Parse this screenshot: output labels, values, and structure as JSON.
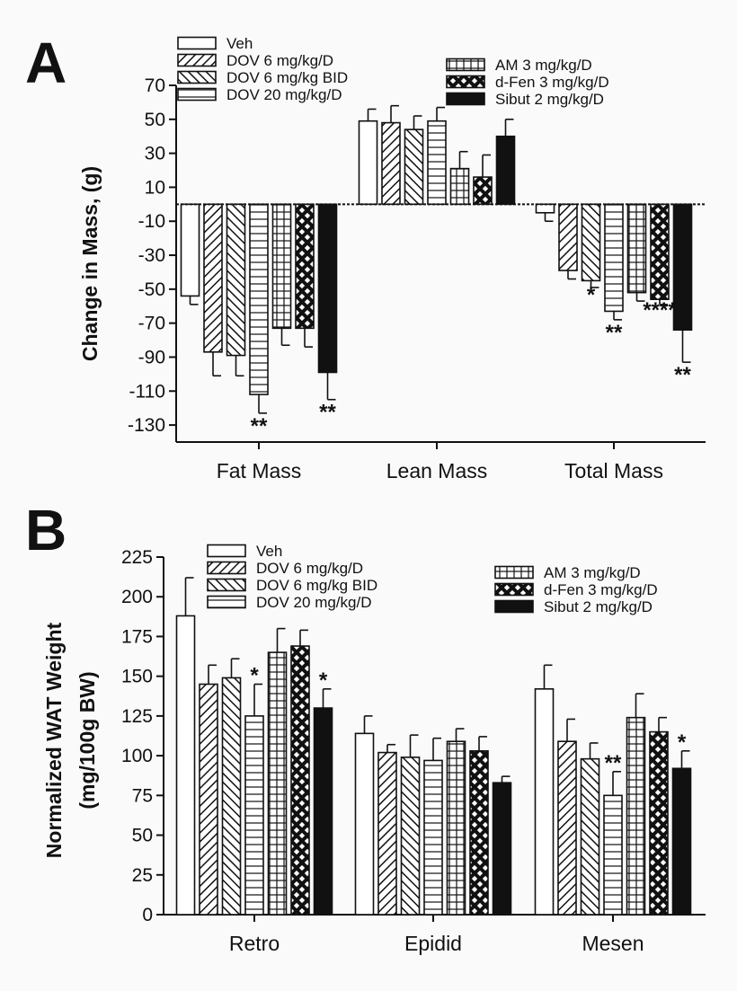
{
  "chart_data": [
    {
      "type": "bar",
      "panel_label": "A",
      "ylabel": "Change in Mass, (g)",
      "ylim": [
        -140,
        70
      ],
      "yticks": [
        "70",
        "50",
        "30",
        "10",
        "-10",
        "-30",
        "-50",
        "-70",
        "-90",
        "-110",
        "-130"
      ],
      "categories": [
        "Fat Mass",
        "Lean Mass",
        "Total Mass"
      ],
      "series": [
        {
          "name": "Veh",
          "pattern": "open",
          "values": [
            -54,
            49,
            -5
          ],
          "errors": [
            5,
            7,
            5
          ]
        },
        {
          "name": "DOV 6 mg/kg/D",
          "pattern": "diag-right",
          "values": [
            -87,
            48,
            -39
          ],
          "errors": [
            14,
            10,
            5
          ]
        },
        {
          "name": "DOV 6 mg/kg BID",
          "pattern": "diag-left",
          "values": [
            -89,
            44,
            -45
          ],
          "errors": [
            12,
            8,
            4
          ]
        },
        {
          "name": "DOV 20 mg/kg/D",
          "pattern": "hlines",
          "values": [
            -112,
            49,
            -63
          ],
          "errors": [
            11,
            8,
            5
          ]
        },
        {
          "name": "AM 3 mg/kg/D",
          "pattern": "grid",
          "values": [
            -73,
            21,
            -52
          ],
          "errors": [
            10,
            10,
            5
          ]
        },
        {
          "name": "d-Fen 3 mg/kg/D",
          "pattern": "cross",
          "values": [
            -73,
            16,
            -56
          ],
          "errors": [
            11,
            13,
            3
          ]
        },
        {
          "name": "Sibut 2 mg/kg/D",
          "pattern": "solid",
          "values": [
            -99,
            40,
            -74
          ],
          "errors": [
            16,
            10,
            19
          ]
        }
      ],
      "annotations": [
        {
          "text": "**",
          "category": 0,
          "series": 3
        },
        {
          "text": "**",
          "category": 0,
          "series": 6
        },
        {
          "text": "*",
          "category": 2,
          "series": 2
        },
        {
          "text": "**",
          "category": 2,
          "series": 3
        },
        {
          "text": "****",
          "category": 2,
          "series": 5
        },
        {
          "text": "**",
          "category": 2,
          "series": 6
        }
      ],
      "grid": false,
      "legend_position": "top"
    },
    {
      "type": "bar",
      "panel_label": "B",
      "ylabel_line1": "Normalized WAT Weight",
      "ylabel_line2": "(mg/100g BW)",
      "ylim": [
        0,
        225
      ],
      "yticks": [
        "225",
        "200",
        "175",
        "150",
        "125",
        "100",
        "75",
        "50",
        "25",
        "0"
      ],
      "categories": [
        "Retro",
        "Epidid",
        "Mesen"
      ],
      "series": [
        {
          "name": "Veh",
          "pattern": "open",
          "values": [
            188,
            114,
            142
          ],
          "errors": [
            24,
            11,
            15
          ]
        },
        {
          "name": "DOV 6 mg/kg/D",
          "pattern": "diag-right",
          "values": [
            145,
            102,
            109
          ],
          "errors": [
            12,
            5,
            14
          ]
        },
        {
          "name": "DOV 6 mg/kg BID",
          "pattern": "diag-left",
          "values": [
            149,
            99,
            98
          ],
          "errors": [
            12,
            14,
            10
          ]
        },
        {
          "name": "DOV 20 mg/kg/D",
          "pattern": "hlines",
          "values": [
            125,
            97,
            75
          ],
          "errors": [
            20,
            14,
            15
          ]
        },
        {
          "name": "AM 3 mg/kg/D",
          "pattern": "grid",
          "values": [
            165,
            109,
            124
          ],
          "errors": [
            15,
            8,
            15
          ]
        },
        {
          "name": "d-Fen 3 mg/kg/D",
          "pattern": "cross",
          "values": [
            169,
            103,
            115
          ],
          "errors": [
            10,
            9,
            9
          ]
        },
        {
          "name": "Sibut 2 mg/kg/D",
          "pattern": "solid",
          "values": [
            130,
            83,
            92
          ],
          "errors": [
            12,
            4,
            11
          ]
        }
      ],
      "annotations": [
        {
          "text": "*",
          "category": 0,
          "series": 3
        },
        {
          "text": "*",
          "category": 0,
          "series": 6
        },
        {
          "text": "**",
          "category": 2,
          "series": 3
        },
        {
          "text": "*",
          "category": 2,
          "series": 6
        }
      ],
      "grid": false,
      "legend_position": "top"
    }
  ]
}
